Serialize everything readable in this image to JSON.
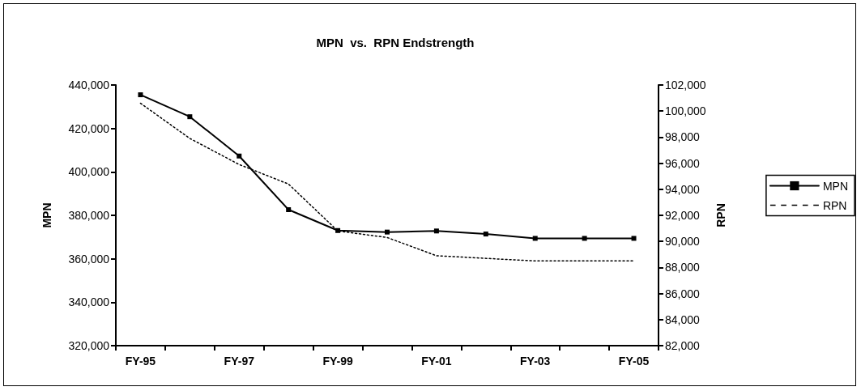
{
  "chart_data": {
    "type": "line",
    "title": "MPN  vs.  RPN Endstrength",
    "ylabel": "MPN",
    "y2label": "RPN",
    "categories": [
      "FY-95",
      null,
      "FY-97",
      null,
      "FY-99",
      null,
      "FY-01",
      null,
      "FY-03",
      null,
      "FY-05"
    ],
    "series": [
      {
        "name": "MPN",
        "color": "#000000",
        "marker": "square",
        "line_style": "solid",
        "values": [
          435500,
          425400,
          407300,
          382600,
          373000,
          372300,
          372800,
          371400,
          369400,
          369400,
          369400
        ]
      },
      {
        "name": "RPN",
        "color": "#000000",
        "marker": "none",
        "line_style": "dotted",
        "axis": "y2",
        "values": [
          100600,
          97900,
          95900,
          94400,
          90800,
          90300,
          88900,
          88700,
          88500,
          88500,
          88500
        ]
      }
    ],
    "ylim": [
      320000,
      440000
    ],
    "yticks": [
      {
        "value": 320000,
        "label": "320,000"
      },
      {
        "value": 340000,
        "label": "340,000"
      },
      {
        "value": 360000,
        "label": "360,000"
      },
      {
        "value": 380000,
        "label": "380,000"
      },
      {
        "value": 400000,
        "label": "400,000"
      },
      {
        "value": 420000,
        "label": "420,000"
      },
      {
        "value": 440000,
        "label": "440,000"
      }
    ],
    "y2lim": [
      82000,
      102000
    ],
    "y2ticks": [
      {
        "value": 82000,
        "label": "82,000"
      },
      {
        "value": 84000,
        "label": "84,000"
      },
      {
        "value": 86000,
        "label": "86,000"
      },
      {
        "value": 88000,
        "label": "88,000"
      },
      {
        "value": 90000,
        "label": "90,000"
      },
      {
        "value": 92000,
        "label": "92,000"
      },
      {
        "value": 94000,
        "label": "94,000"
      },
      {
        "value": 96000,
        "label": "96,000"
      },
      {
        "value": 98000,
        "label": "98,000"
      },
      {
        "value": 100000,
        "label": "100,000"
      },
      {
        "value": 102000,
        "label": "102,000"
      }
    ],
    "legend": "right",
    "grid": false
  }
}
